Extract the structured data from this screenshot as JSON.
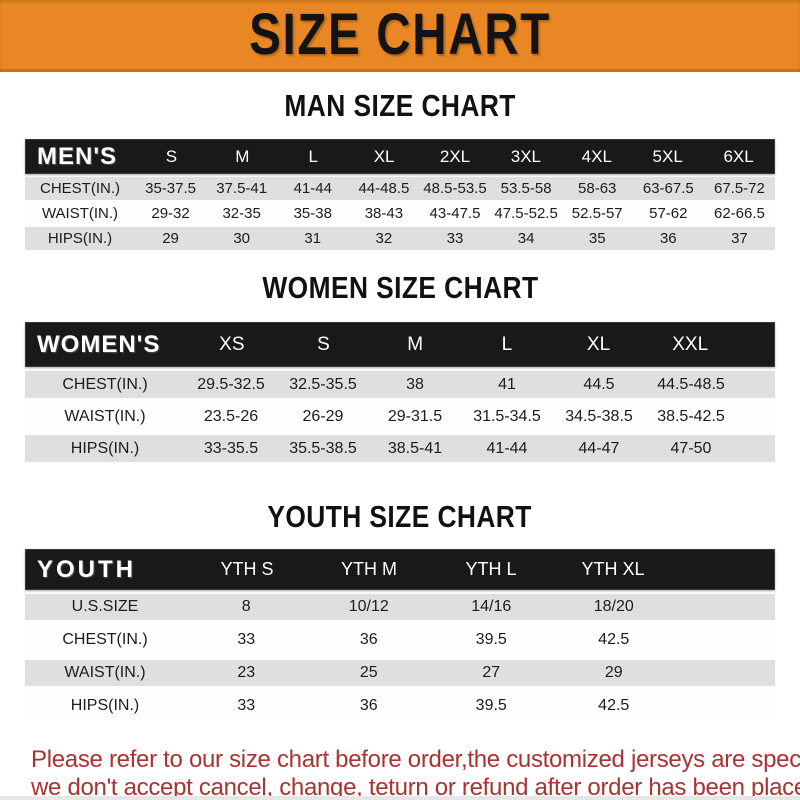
{
  "banner": {
    "title": "SIZE CHART"
  },
  "colors": {
    "banner_orange": "#E98724",
    "header_black": "#191919",
    "row_gray": "#DFDFDF",
    "footer_red": "#A93330"
  },
  "sections": [
    {
      "title": "MAN SIZE CHART",
      "table": {
        "header_label": "MEN'S",
        "columns": [
          "S",
          "M",
          "L",
          "XL",
          "2XL",
          "3XL",
          "4XL",
          "5XL",
          "6XL"
        ],
        "rows": [
          {
            "label": "CHEST(IN.)",
            "values": [
              "35-37.5",
              "37.5-41",
              "41-44",
              "44-48.5",
              "48.5-53.5",
              "53.5-58",
              "58-63",
              "63-67.5",
              "67.5-72"
            ]
          },
          {
            "label": "WAIST(IN.)",
            "values": [
              "29-32",
              "32-35",
              "35-38",
              "38-43",
              "43-47.5",
              "47.5-52.5",
              "52.5-57",
              "57-62",
              "62-66.5"
            ]
          },
          {
            "label": "HIPS(IN.)",
            "values": [
              "29",
              "30",
              "31",
              "32",
              "33",
              "34",
              "35",
              "36",
              "37"
            ]
          }
        ]
      }
    },
    {
      "title": "WOMEN SIZE CHART",
      "table": {
        "header_label": "WOMEN'S",
        "columns": [
          "XS",
          "S",
          "M",
          "L",
          "XL",
          "XXL"
        ],
        "rows": [
          {
            "label": "CHEST(IN.)",
            "values": [
              "29.5-32.5",
              "32.5-35.5",
              "38",
              "41",
              "44.5",
              "44.5-48.5"
            ]
          },
          {
            "label": "WAIST(IN.)",
            "values": [
              "23.5-26",
              "26-29",
              "29-31.5",
              "31.5-34.5",
              "34.5-38.5",
              "38.5-42.5"
            ]
          },
          {
            "label": "HIPS(IN.)",
            "values": [
              "33-35.5",
              "35.5-38.5",
              "38.5-41",
              "41-44",
              "44-47",
              "47-50"
            ]
          }
        ]
      }
    },
    {
      "title": "YOUTH SIZE CHART",
      "table": {
        "header_label": "YOUTH",
        "columns": [
          "YTH S",
          "YTH M",
          "YTH L",
          "YTH XL"
        ],
        "rows": [
          {
            "label": "U.S.SIZE",
            "values": [
              "8",
              "10/12",
              "14/16",
              "18/20"
            ]
          },
          {
            "label": "CHEST(IN.)",
            "values": [
              "33",
              "36",
              "39.5",
              "42.5"
            ]
          },
          {
            "label": "WAIST(IN.)",
            "values": [
              "23",
              "25",
              "27",
              "29"
            ]
          },
          {
            "label": "HIPS(IN.)",
            "values": [
              "33",
              "36",
              "39.5",
              "42.5"
            ]
          }
        ]
      }
    }
  ],
  "footer": {
    "line1": "Please refer to our size chart before order,the customized jerseys are special products,",
    "line2": "we don't accept cancel, change, teturn or refund after order has been placed!"
  }
}
